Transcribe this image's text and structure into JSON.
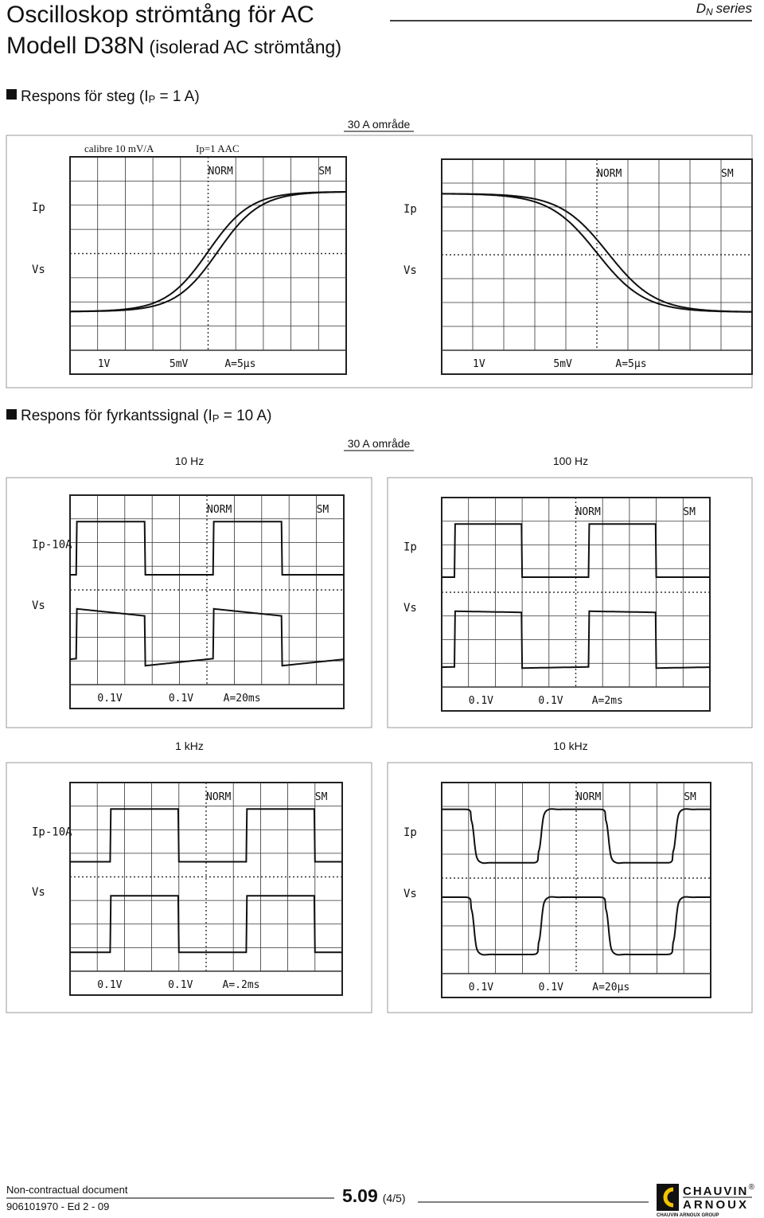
{
  "header": {
    "title": "Oscilloskop strömtång för AC",
    "model": "Modell D38N",
    "model_note": "(isolerad AC strömtång)",
    "series": {
      "d": "D",
      "n": "N",
      "word": "series"
    }
  },
  "step": {
    "heading": {
      "a": "Respons för steg (I",
      "sub": "P",
      "b": " = 1 A)"
    },
    "range": "30 A område",
    "scopes": [
      {
        "top": [
          "calibre 10 mV/A",
          "Ip=1 AAC"
        ],
        "norm": "NORM",
        "sm": "SM",
        "ip": "Ip",
        "vs": "Vs",
        "ch1": "1V",
        "ch2": "5mV",
        "time": "A=5µs"
      },
      {
        "norm": "NORM",
        "sm": "SM",
        "ip": "Ip",
        "vs": "Vs",
        "ch1": "1V",
        "ch2": "5mV",
        "time": "A=5µs"
      }
    ]
  },
  "square": {
    "heading": {
      "a": "Respons för fyrkantssignal (I",
      "sub": "P",
      "b": " = 10 A)"
    },
    "range": "30 A område",
    "panels": [
      {
        "freq": "10 Hz",
        "scope": {
          "norm": "NORM",
          "sm": "SM",
          "ip": "Ip-10A",
          "vs": "Vs",
          "ch1": "0.1V",
          "ch2": "0.1V",
          "time": "A=20ms"
        }
      },
      {
        "freq": "100 Hz",
        "scope": {
          "norm": "NORM",
          "sm": "SM",
          "ip": "Ip",
          "vs": "Vs",
          "ch1": "0.1V",
          "ch2": "0.1V",
          "time": "A=2ms"
        }
      },
      {
        "freq": "1 kHz",
        "scope": {
          "norm": "NORM",
          "sm": "SM",
          "ip": "Ip-10A",
          "vs": "Vs",
          "ch1": "0.1V",
          "ch2": "0.1V",
          "time": "A=.2ms"
        }
      },
      {
        "freq": "10 kHz",
        "scope": {
          "norm": "NORM",
          "sm": "SM",
          "ip": "Ip",
          "vs": "Vs",
          "ch1": "0.1V",
          "ch2": "0.1V",
          "time": "A=20µs"
        }
      }
    ]
  },
  "footer": {
    "note": "Non-contractual document",
    "ref": "906101970 - Ed 2 - 09",
    "page": "5.09",
    "sub": "(4/5)",
    "logo": {
      "a": "CHAUVIN",
      "reg": "®",
      "b": "ARNOUX",
      "group": "CHAUVIN ARNOUX GROUP"
    }
  }
}
